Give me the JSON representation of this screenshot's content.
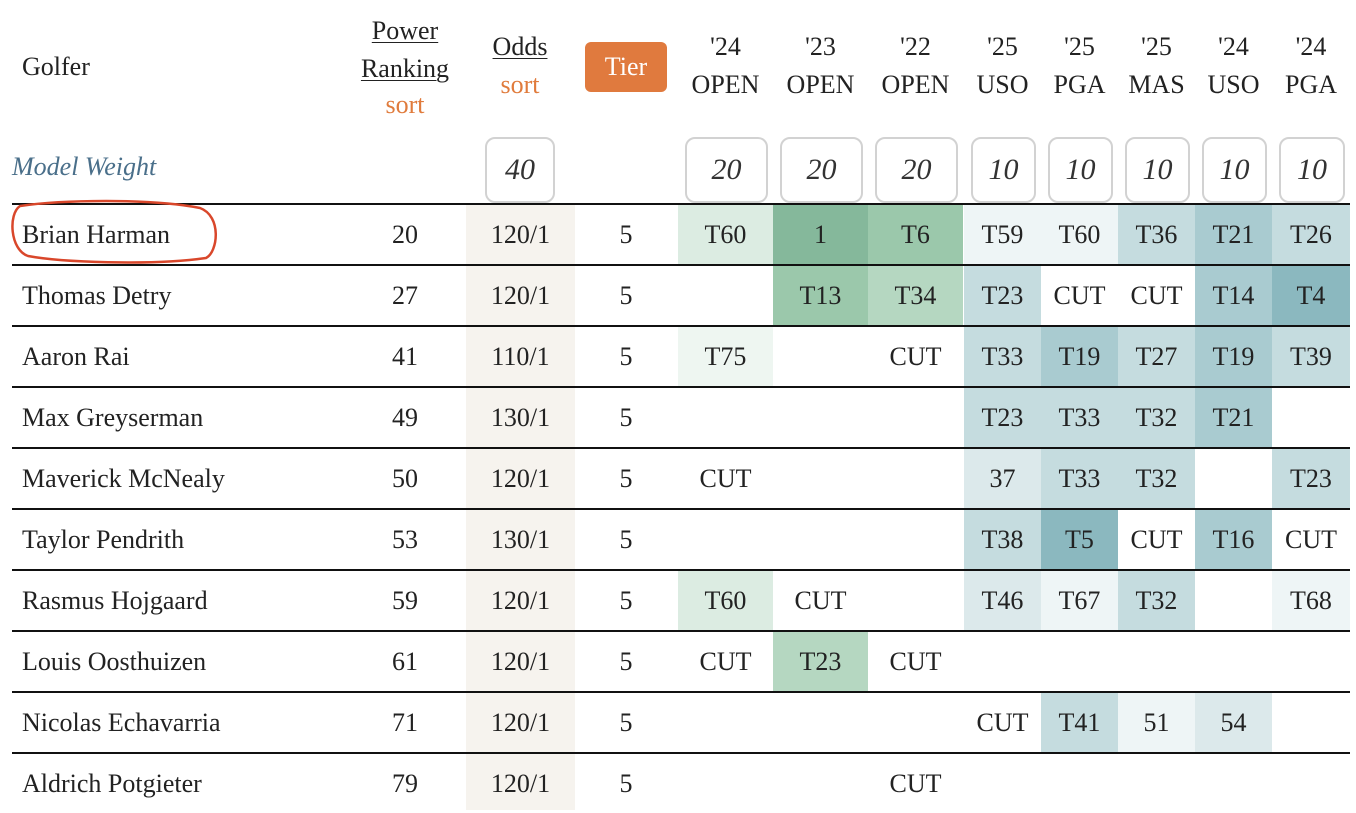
{
  "header": {
    "golfer": "Golfer",
    "power_ranking": "Power Ranking",
    "power_sort": "sort",
    "odds": "Odds",
    "odds_sort": "sort",
    "tier": "Tier",
    "events": [
      {
        "year": "'24",
        "name": "OPEN"
      },
      {
        "year": "'23",
        "name": "OPEN"
      },
      {
        "year": "'22",
        "name": "OPEN"
      },
      {
        "year": "'25",
        "name": "USO"
      },
      {
        "year": "'25",
        "name": "PGA"
      },
      {
        "year": "'25",
        "name": "MAS"
      },
      {
        "year": "'24",
        "name": "USO"
      },
      {
        "year": "'24",
        "name": "PGA"
      }
    ]
  },
  "model_weight": {
    "label": "Model Weight",
    "odds": 40,
    "events": [
      20,
      20,
      20,
      10,
      10,
      10,
      10,
      10
    ]
  },
  "rows": [
    {
      "golfer": "Brian Harman",
      "power_ranking": 20,
      "odds": "120/1",
      "tier": 5,
      "results": [
        "T60",
        "1",
        "T6",
        "T59",
        "T60",
        "T36",
        "T21",
        "T26"
      ]
    },
    {
      "golfer": "Thomas Detry",
      "power_ranking": 27,
      "odds": "120/1",
      "tier": 5,
      "results": [
        null,
        "T13",
        "T34",
        "T23",
        "CUT",
        "CUT",
        "T14",
        "T4"
      ]
    },
    {
      "golfer": "Aaron Rai",
      "power_ranking": 41,
      "odds": "110/1",
      "tier": 5,
      "results": [
        "T75",
        null,
        "CUT",
        "T33",
        "T19",
        "T27",
        "T19",
        "T39"
      ]
    },
    {
      "golfer": "Max Greyserman",
      "power_ranking": 49,
      "odds": "130/1",
      "tier": 5,
      "results": [
        null,
        null,
        null,
        "T23",
        "T33",
        "T32",
        "T21",
        null
      ]
    },
    {
      "golfer": "Maverick McNealy",
      "power_ranking": 50,
      "odds": "120/1",
      "tier": 5,
      "results": [
        "CUT",
        null,
        null,
        "37",
        "T33",
        "T32",
        null,
        "T23"
      ]
    },
    {
      "golfer": "Taylor Pendrith",
      "power_ranking": 53,
      "odds": "130/1",
      "tier": 5,
      "results": [
        null,
        null,
        null,
        "T38",
        "T5",
        "CUT",
        "T16",
        "CUT"
      ]
    },
    {
      "golfer": "Rasmus Hojgaard",
      "power_ranking": 59,
      "odds": "120/1",
      "tier": 5,
      "results": [
        "T60",
        "CUT",
        null,
        "T46",
        "T67",
        "T32",
        null,
        "T68"
      ]
    },
    {
      "golfer": "Louis Oosthuizen",
      "power_ranking": 61,
      "odds": "120/1",
      "tier": 5,
      "results": [
        "CUT",
        "T23",
        "CUT",
        null,
        null,
        null,
        null,
        null
      ]
    },
    {
      "golfer": "Nicolas Echavarria",
      "power_ranking": 71,
      "odds": "120/1",
      "tier": 5,
      "results": [
        null,
        null,
        null,
        "CUT",
        "T41",
        "51",
        "54",
        null
      ]
    },
    {
      "golfer": "Aldrich Potgieter",
      "power_ranking": 79,
      "odds": "120/1",
      "tier": 5,
      "results": [
        null,
        null,
        "CUT",
        null,
        null,
        null,
        null,
        null
      ]
    }
  ]
}
